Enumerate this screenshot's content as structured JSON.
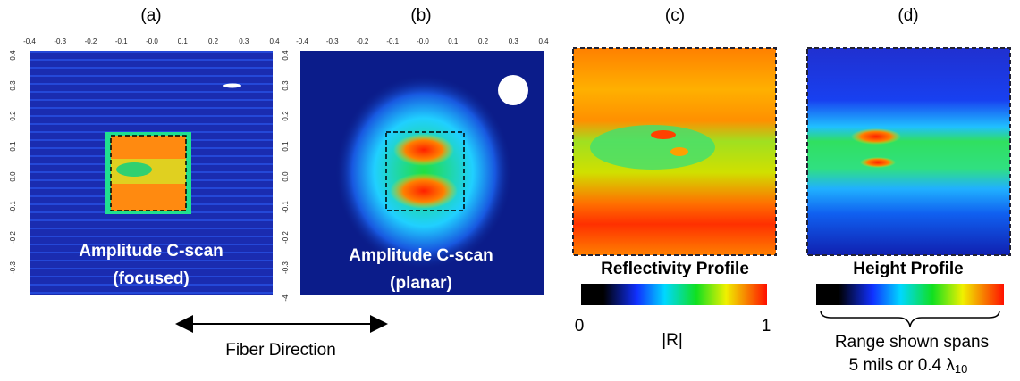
{
  "panels": [
    {
      "label": "(a)",
      "top_ticks": [
        "-0.4",
        "-0.3",
        "-0.2",
        "-0.1",
        "-0.0",
        "0.1",
        "0.2",
        "0.3",
        "0.4"
      ],
      "left_ticks": [
        "0.4",
        "0.3",
        "0.2",
        "0.1",
        "0.0",
        "-0.1",
        "-0.2",
        "-0.3"
      ],
      "caption": [
        "Amplitude C-scan",
        "(focused)"
      ]
    },
    {
      "label": "(b)",
      "top_ticks": [
        "-0.4",
        "-0.3",
        "-0.2",
        "-0.1",
        "-0.0",
        "0.1",
        "0.2",
        "0.3",
        "0.4"
      ],
      "left_ticks": [
        "0.4",
        "0.3",
        "0.2",
        "0.1",
        "0.0",
        "-0.1",
        "-0.2",
        "-0.3",
        "-4"
      ],
      "caption": [
        "Amplitude C-scan",
        "(planar)"
      ]
    },
    {
      "label": "(c)",
      "title": "Reflectivity Profile",
      "scale_min": "0",
      "scale_max": "1",
      "scale_label": "|R|"
    },
    {
      "label": "(d)",
      "title": "Height Profile",
      "note": [
        "Range shown spans",
        "5 mils  or  0.4 λ"
      ],
      "note_subscript": "10"
    }
  ],
  "fiber_direction": "Fiber Direction"
}
